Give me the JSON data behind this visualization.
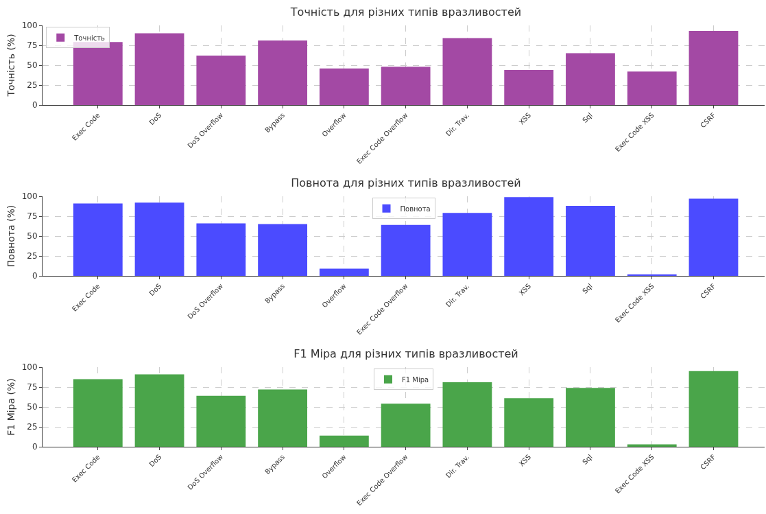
{
  "chart_data": [
    {
      "type": "bar",
      "title": "Точність для різних типів вразливостей",
      "ylabel": "Точність (%)",
      "categories": [
        "Exec Code",
        "DoS",
        "DoS Overflow",
        "Bypass",
        "Overflow",
        "Exec Code Overflow",
        "Dir. Trav.",
        "XSS",
        "Sql",
        "Exec Code XSS",
        "CSRF"
      ],
      "series": [
        {
          "name": "Точність",
          "color": "#a349a4",
          "values": [
            79,
            90,
            62,
            81,
            46,
            48,
            84,
            44,
            65,
            42,
            93
          ]
        }
      ],
      "ylim": [
        0,
        100
      ],
      "yticks": [
        0,
        25,
        50,
        75,
        100
      ],
      "grid": true,
      "legend": "top left"
    },
    {
      "type": "bar",
      "title": "Повнота для різних типів вразливостей",
      "ylabel": "Повнота (%)",
      "categories": [
        "Exec Code",
        "DoS",
        "DoS Overflow",
        "Bypass",
        "Overflow",
        "Exec Code Overflow",
        "Dir. Trav.",
        "XSS",
        "Sql",
        "Exec Code XSS",
        "CSRF"
      ],
      "series": [
        {
          "name": "Повнота",
          "color": "#4b4bff",
          "values": [
            91,
            92,
            66,
            65,
            9,
            64,
            79,
            99,
            88,
            2,
            97
          ]
        }
      ],
      "ylim": [
        0,
        100
      ],
      "yticks": [
        0,
        25,
        50,
        75,
        100
      ],
      "grid": true,
      "legend": "top"
    },
    {
      "type": "bar",
      "title": "F1 Міра для різних типів вразливостей",
      "ylabel": "F1 Міра (%)",
      "categories": [
        "Exec Code",
        "DoS",
        "DoS Overflow",
        "Bypass",
        "Overflow",
        "Exec Code Overflow",
        "Dir. Trav.",
        "XSS",
        "Sql",
        "Exec Code XSS",
        "CSRF"
      ],
      "series": [
        {
          "name": "F1 Міра",
          "color": "#4aa54a",
          "values": [
            85,
            91,
            64,
            72,
            14,
            54,
            81,
            61,
            74,
            3,
            95
          ]
        }
      ],
      "ylim": [
        0,
        100
      ],
      "yticks": [
        0,
        25,
        50,
        75,
        100
      ],
      "grid": true,
      "legend": "top"
    }
  ]
}
